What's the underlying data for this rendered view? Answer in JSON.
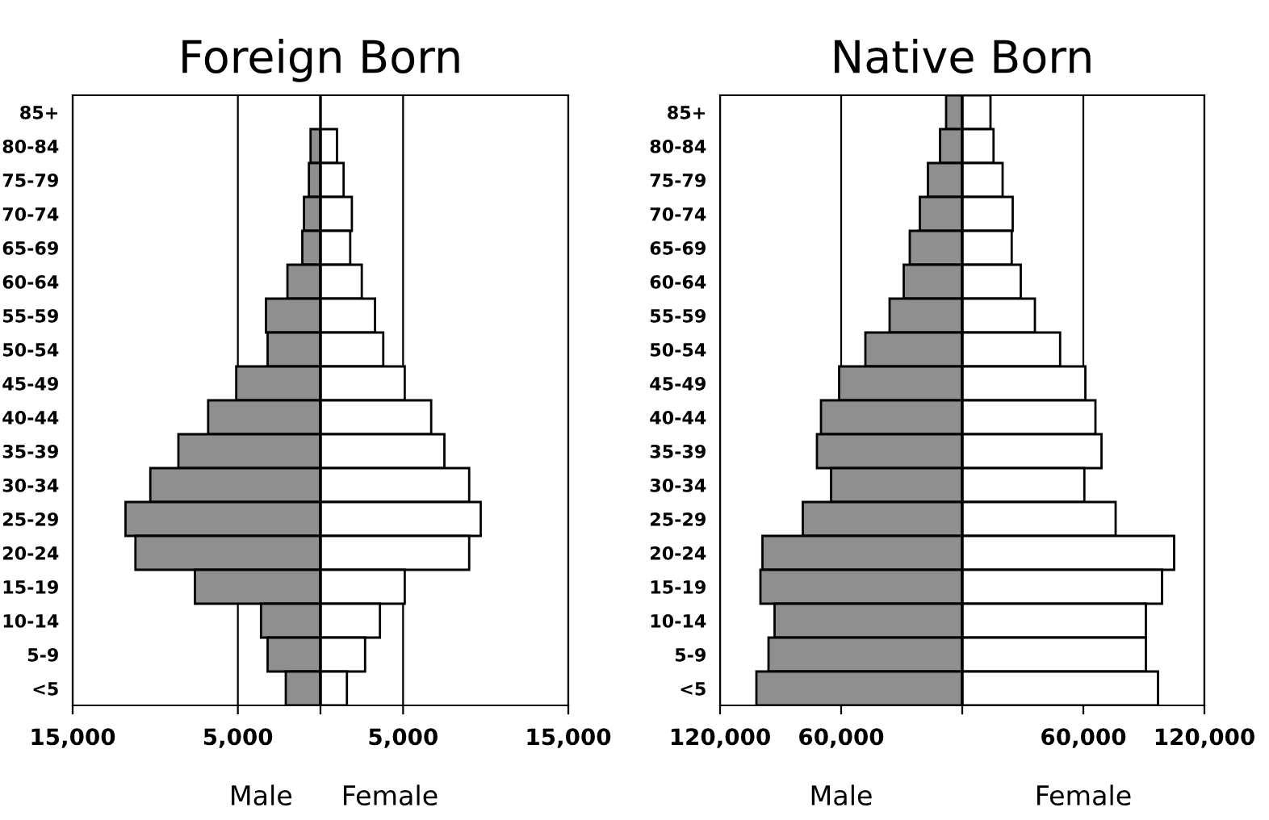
{
  "chart_data": [
    {
      "type": "bar",
      "orientation": "horizontal",
      "stacked": true,
      "title": "Foreign Born",
      "categories": [
        "85+",
        "80-84",
        "75-79",
        "70-74",
        "65-69",
        "60-64",
        "55-59",
        "50-54",
        "45-49",
        "40-44",
        "35-39",
        "30-34",
        "25-29",
        "20-24",
        "15-19",
        "10-14",
        "5-9",
        "<5"
      ],
      "series": [
        {
          "name": "Male",
          "color": "#8f8f8f",
          "values": [
            null,
            -600,
            -700,
            -1000,
            -1100,
            -2000,
            -3300,
            -3200,
            -5100,
            -6800,
            -8600,
            -10300,
            -11800,
            -11200,
            -7600,
            -3600,
            -3200,
            -2100
          ]
        },
        {
          "name": "Female",
          "color": "#ffffff",
          "values": [
            null,
            1000,
            1400,
            1900,
            1800,
            2500,
            3300,
            3800,
            5100,
            6700,
            7500,
            9000,
            9700,
            9000,
            5100,
            3600,
            2700,
            1600
          ]
        }
      ],
      "xlim": [
        -15000,
        15000
      ],
      "xticks": [
        {
          "value": -15000,
          "label": "15,000"
        },
        {
          "value": -5000,
          "label": "5,000"
        },
        {
          "value": 0,
          "label": null
        },
        {
          "value": 5000,
          "label": "5,000"
        },
        {
          "value": 15000,
          "label": "15,000"
        }
      ],
      "grid": "x"
    },
    {
      "type": "bar",
      "orientation": "horizontal",
      "stacked": true,
      "title": "Native Born",
      "categories": [
        "85+",
        "80-84",
        "75-79",
        "70-74",
        "65-69",
        "60-64",
        "55-59",
        "50-54",
        "45-49",
        "40-44",
        "35-39",
        "30-34",
        "25-29",
        "20-24",
        "15-19",
        "10-14",
        "5-9",
        "<5"
      ],
      "series": [
        {
          "name": "Male",
          "color": "#8f8f8f",
          "values": [
            -8000,
            -11000,
            -17000,
            -21000,
            -26000,
            -29000,
            -36000,
            -48000,
            -61000,
            -70000,
            -72000,
            -65000,
            -79000,
            -99000,
            -100000,
            -93000,
            -96000,
            -102000
          ]
        },
        {
          "name": "Female",
          "color": "#ffffff",
          "values": [
            14000,
            15500,
            20000,
            25000,
            24500,
            29000,
            36000,
            48500,
            61000,
            66000,
            69000,
            60500,
            76000,
            105000,
            99000,
            91000,
            91000,
            97000
          ]
        }
      ],
      "xlim": [
        -120000,
        120000
      ],
      "xticks": [
        {
          "value": -120000,
          "label": "120,000"
        },
        {
          "value": -60000,
          "label": "60,000"
        },
        {
          "value": 0,
          "label": null
        },
        {
          "value": 60000,
          "label": "60,000"
        },
        {
          "value": 120000,
          "label": "120,000"
        }
      ],
      "grid": "x"
    }
  ]
}
